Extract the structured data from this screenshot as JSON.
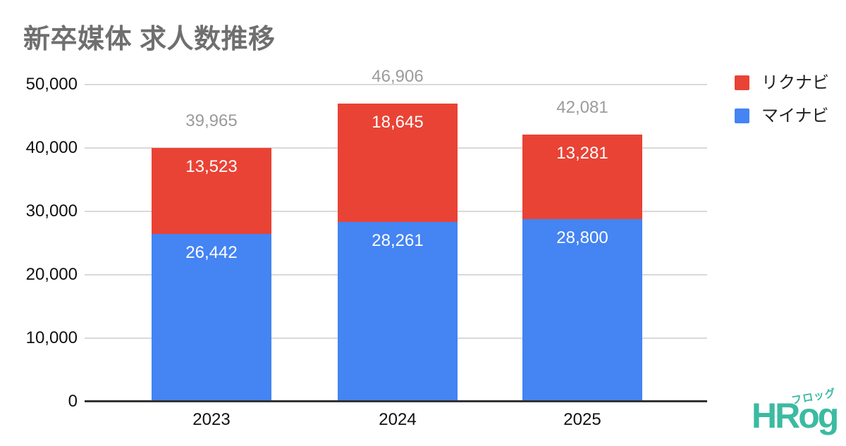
{
  "title": "新卒媒体 求人数推移",
  "legend": [
    {
      "label": "リクナビ",
      "color": "#E94335"
    },
    {
      "label": "マイナビ",
      "color": "#4484F3"
    }
  ],
  "chart_data": {
    "type": "bar",
    "stacked": true,
    "title": "新卒媒体 求人数推移",
    "categories": [
      "2023",
      "2024",
      "2025"
    ],
    "series": [
      {
        "name": "マイナビ",
        "color": "#4484F3",
        "values": [
          26442,
          28261,
          28800
        ]
      },
      {
        "name": "リクナビ",
        "color": "#E94335",
        "values": [
          13523,
          18645,
          13281
        ]
      }
    ],
    "totals": [
      39965,
      46906,
      42081
    ],
    "xlabel": "",
    "ylabel": "",
    "ylim": [
      0,
      50000
    ],
    "yticks": [
      0,
      10000,
      20000,
      30000,
      40000,
      50000
    ],
    "grid": true,
    "legend_position": "top-right",
    "colors": {
      "grid": "#d9d9d9",
      "axis": "#333333",
      "tick_text": "#111111",
      "total_text": "#9B9B9B",
      "inside_text": "#ffffff"
    }
  },
  "logo": {
    "text": "HRog",
    "sub": "フロッグ"
  }
}
